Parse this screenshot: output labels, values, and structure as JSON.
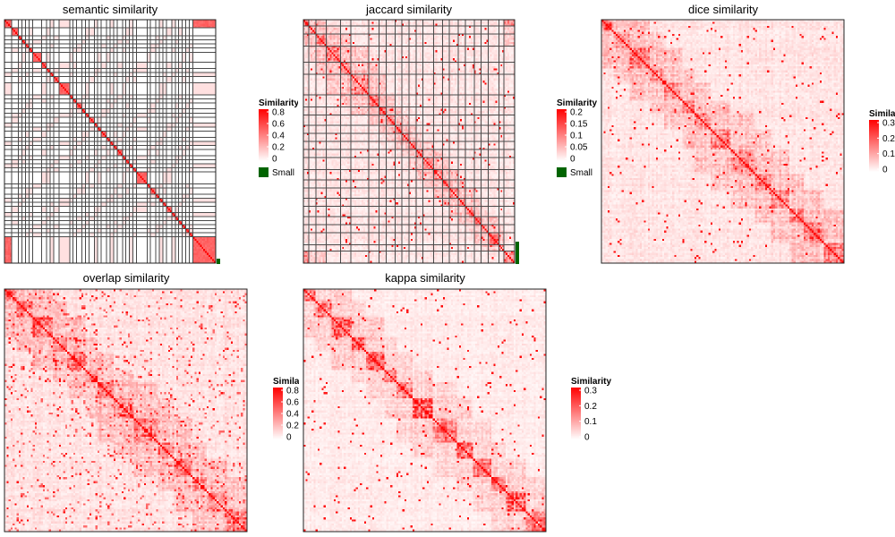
{
  "chart_data": [
    {
      "type": "heatmap",
      "title": "semantic similarity",
      "n": 120,
      "pattern": "semantic",
      "legend": {
        "title": "Similarity",
        "ticks": [
          "0.8",
          "0.6",
          "0.4",
          "0.2",
          "0"
        ],
        "range": [
          0,
          0.8
        ],
        "extra_label": "Small"
      },
      "color_low": "#ffffff",
      "color_high": "#ff0000",
      "grid_color": "#4a4a4a",
      "marker_color": "#006400"
    },
    {
      "type": "heatmap",
      "title": "jaccard similarity",
      "n": 120,
      "pattern": "jaccard",
      "legend": {
        "title": "Similarity",
        "ticks": [
          "0.2",
          "0.15",
          "0.1",
          "0.05",
          "0"
        ],
        "range": [
          0,
          0.2
        ],
        "extra_label": "Small"
      },
      "color_low": "#ffffff",
      "color_high": "#ff0000",
      "grid_color": "#4a4a4a",
      "marker_color": "#006400"
    },
    {
      "type": "heatmap",
      "title": "dice similarity",
      "n": 120,
      "pattern": "dice",
      "legend": {
        "title": "Similarity",
        "ticks": [
          "0.3",
          "0.2",
          "0.1",
          "0"
        ],
        "range": [
          0,
          0.3
        ]
      },
      "color_low": "#ffffff",
      "color_high": "#ff0000"
    },
    {
      "type": "heatmap",
      "title": "overlap similarity",
      "n": 120,
      "pattern": "overlap",
      "legend": {
        "title": "Similarity",
        "ticks": [
          "0.8",
          "0.6",
          "0.4",
          "0.2",
          "0"
        ],
        "range": [
          0,
          0.8
        ]
      },
      "color_low": "#ffffff",
      "color_high": "#ff0000"
    },
    {
      "type": "heatmap",
      "title": "kappa similarity",
      "n": 120,
      "pattern": "kappa",
      "legend": {
        "title": "Similarity",
        "ticks": [
          "0.3",
          "0.2",
          "0.1",
          "0"
        ],
        "range": [
          0,
          0.3
        ]
      },
      "color_low": "#ffffff",
      "color_high": "#ff0000"
    }
  ]
}
